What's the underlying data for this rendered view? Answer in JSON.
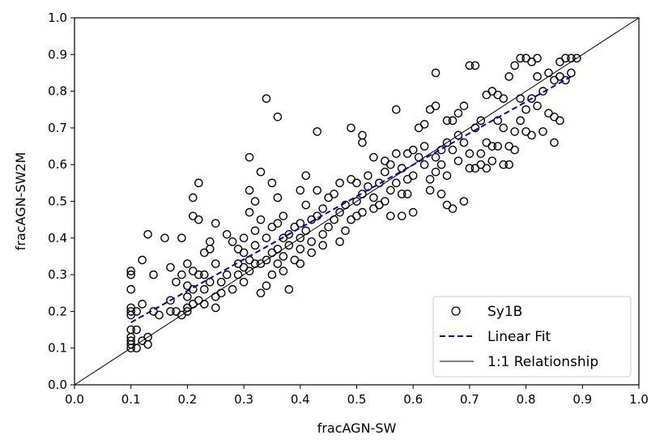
{
  "chart_data": {
    "type": "scatter",
    "xlabel": "fracAGN-SW",
    "ylabel": "fracAGN-SW2M",
    "xlim": [
      0.0,
      1.0
    ],
    "ylim": [
      0.0,
      1.0
    ],
    "xticks": [
      "0.0",
      "0.1",
      "0.2",
      "0.3",
      "0.4",
      "0.5",
      "0.6",
      "0.7",
      "0.8",
      "0.9",
      "1.0"
    ],
    "yticks": [
      "0.0",
      "0.1",
      "0.2",
      "0.3",
      "0.4",
      "0.5",
      "0.6",
      "0.7",
      "0.8",
      "0.9",
      "1.0"
    ],
    "grid": false,
    "legend_position": "lower-right",
    "colors": {
      "points": "#000000",
      "fit": "#0000cc",
      "identity": "#000000"
    },
    "series": [
      {
        "name": "Sy1B",
        "kind": "scatter",
        "points": [
          [
            0.1,
            0.1
          ],
          [
            0.1,
            0.11
          ],
          [
            0.1,
            0.12
          ],
          [
            0.1,
            0.13
          ],
          [
            0.1,
            0.15
          ],
          [
            0.1,
            0.19
          ],
          [
            0.1,
            0.2
          ],
          [
            0.1,
            0.21
          ],
          [
            0.1,
            0.26
          ],
          [
            0.1,
            0.3
          ],
          [
            0.1,
            0.31
          ],
          [
            0.11,
            0.1
          ],
          [
            0.11,
            0.15
          ],
          [
            0.11,
            0.2
          ],
          [
            0.12,
            0.12
          ],
          [
            0.12,
            0.22
          ],
          [
            0.12,
            0.34
          ],
          [
            0.13,
            0.11
          ],
          [
            0.13,
            0.13
          ],
          [
            0.13,
            0.41
          ],
          [
            0.14,
            0.2
          ],
          [
            0.14,
            0.3
          ],
          [
            0.15,
            0.19
          ],
          [
            0.16,
            0.4
          ],
          [
            0.17,
            0.2
          ],
          [
            0.17,
            0.23
          ],
          [
            0.17,
            0.32
          ],
          [
            0.18,
            0.2
          ],
          [
            0.18,
            0.28
          ],
          [
            0.19,
            0.19
          ],
          [
            0.19,
            0.3
          ],
          [
            0.19,
            0.4
          ],
          [
            0.2,
            0.2
          ],
          [
            0.2,
            0.21
          ],
          [
            0.2,
            0.24
          ],
          [
            0.2,
            0.27
          ],
          [
            0.2,
            0.33
          ],
          [
            0.21,
            0.22
          ],
          [
            0.21,
            0.26
          ],
          [
            0.21,
            0.31
          ],
          [
            0.21,
            0.46
          ],
          [
            0.21,
            0.51
          ],
          [
            0.22,
            0.23
          ],
          [
            0.22,
            0.3
          ],
          [
            0.22,
            0.45
          ],
          [
            0.22,
            0.55
          ],
          [
            0.23,
            0.22
          ],
          [
            0.23,
            0.26
          ],
          [
            0.23,
            0.3
          ],
          [
            0.23,
            0.36
          ],
          [
            0.24,
            0.28
          ],
          [
            0.24,
            0.37
          ],
          [
            0.24,
            0.39
          ],
          [
            0.25,
            0.21
          ],
          [
            0.25,
            0.24
          ],
          [
            0.25,
            0.33
          ],
          [
            0.25,
            0.44
          ],
          [
            0.26,
            0.25
          ],
          [
            0.26,
            0.28
          ],
          [
            0.27,
            0.3
          ],
          [
            0.27,
            0.41
          ],
          [
            0.28,
            0.26
          ],
          [
            0.28,
            0.39
          ],
          [
            0.29,
            0.3
          ],
          [
            0.29,
            0.33
          ],
          [
            0.29,
            0.37
          ],
          [
            0.3,
            0.28
          ],
          [
            0.3,
            0.32
          ],
          [
            0.3,
            0.36
          ],
          [
            0.3,
            0.4
          ],
          [
            0.31,
            0.31
          ],
          [
            0.31,
            0.34
          ],
          [
            0.31,
            0.47
          ],
          [
            0.31,
            0.53
          ],
          [
            0.31,
            0.62
          ],
          [
            0.32,
            0.33
          ],
          [
            0.32,
            0.38
          ],
          [
            0.32,
            0.42
          ],
          [
            0.32,
            0.5
          ],
          [
            0.33,
            0.25
          ],
          [
            0.33,
            0.33
          ],
          [
            0.33,
            0.45
          ],
          [
            0.33,
            0.58
          ],
          [
            0.34,
            0.27
          ],
          [
            0.34,
            0.34
          ],
          [
            0.34,
            0.4
          ],
          [
            0.34,
            0.78
          ],
          [
            0.35,
            0.3
          ],
          [
            0.35,
            0.36
          ],
          [
            0.35,
            0.43
          ],
          [
            0.35,
            0.55
          ],
          [
            0.36,
            0.33
          ],
          [
            0.36,
            0.37
          ],
          [
            0.36,
            0.44
          ],
          [
            0.36,
            0.51
          ],
          [
            0.36,
            0.73
          ],
          [
            0.37,
            0.31
          ],
          [
            0.37,
            0.35
          ],
          [
            0.37,
            0.4
          ],
          [
            0.37,
            0.46
          ],
          [
            0.38,
            0.26
          ],
          [
            0.38,
            0.38
          ],
          [
            0.38,
            0.41
          ],
          [
            0.39,
            0.34
          ],
          [
            0.39,
            0.43
          ],
          [
            0.4,
            0.33
          ],
          [
            0.4,
            0.37
          ],
          [
            0.4,
            0.4
          ],
          [
            0.4,
            0.44
          ],
          [
            0.4,
            0.53
          ],
          [
            0.41,
            0.42
          ],
          [
            0.41,
            0.49
          ],
          [
            0.41,
            0.57
          ],
          [
            0.42,
            0.36
          ],
          [
            0.42,
            0.39
          ],
          [
            0.42,
            0.45
          ],
          [
            0.43,
            0.46
          ],
          [
            0.43,
            0.53
          ],
          [
            0.43,
            0.69
          ],
          [
            0.44,
            0.38
          ],
          [
            0.44,
            0.41
          ],
          [
            0.44,
            0.48
          ],
          [
            0.45,
            0.43
          ],
          [
            0.45,
            0.51
          ],
          [
            0.46,
            0.45
          ],
          [
            0.46,
            0.52
          ],
          [
            0.47,
            0.39
          ],
          [
            0.47,
            0.47
          ],
          [
            0.47,
            0.55
          ],
          [
            0.48,
            0.42
          ],
          [
            0.48,
            0.49
          ],
          [
            0.49,
            0.45
          ],
          [
            0.49,
            0.56
          ],
          [
            0.49,
            0.7
          ],
          [
            0.5,
            0.46
          ],
          [
            0.5,
            0.5
          ],
          [
            0.5,
            0.55
          ],
          [
            0.51,
            0.47
          ],
          [
            0.51,
            0.52
          ],
          [
            0.51,
            0.66
          ],
          [
            0.51,
            0.68
          ],
          [
            0.52,
            0.54
          ],
          [
            0.52,
            0.57
          ],
          [
            0.53,
            0.48
          ],
          [
            0.53,
            0.51
          ],
          [
            0.53,
            0.62
          ],
          [
            0.54,
            0.49
          ],
          [
            0.54,
            0.55
          ],
          [
            0.55,
            0.5
          ],
          [
            0.55,
            0.58
          ],
          [
            0.55,
            0.61
          ],
          [
            0.56,
            0.46
          ],
          [
            0.56,
            0.53
          ],
          [
            0.56,
            0.6
          ],
          [
            0.57,
            0.55
          ],
          [
            0.57,
            0.63
          ],
          [
            0.57,
            0.75
          ],
          [
            0.58,
            0.46
          ],
          [
            0.58,
            0.52
          ],
          [
            0.58,
            0.59
          ],
          [
            0.59,
            0.52
          ],
          [
            0.59,
            0.56
          ],
          [
            0.59,
            0.63
          ],
          [
            0.6,
            0.47
          ],
          [
            0.6,
            0.57
          ],
          [
            0.6,
            0.64
          ],
          [
            0.61,
            0.62
          ],
          [
            0.61,
            0.7
          ],
          [
            0.62,
            0.6
          ],
          [
            0.62,
            0.65
          ],
          [
            0.62,
            0.71
          ],
          [
            0.63,
            0.53
          ],
          [
            0.63,
            0.56
          ],
          [
            0.63,
            0.75
          ],
          [
            0.64,
            0.58
          ],
          [
            0.64,
            0.62
          ],
          [
            0.64,
            0.76
          ],
          [
            0.64,
            0.85
          ],
          [
            0.65,
            0.52
          ],
          [
            0.65,
            0.6
          ],
          [
            0.65,
            0.64
          ],
          [
            0.66,
            0.49
          ],
          [
            0.66,
            0.57
          ],
          [
            0.66,
            0.66
          ],
          [
            0.66,
            0.72
          ],
          [
            0.67,
            0.48
          ],
          [
            0.67,
            0.64
          ],
          [
            0.67,
            0.72
          ],
          [
            0.68,
            0.61
          ],
          [
            0.68,
            0.68
          ],
          [
            0.68,
            0.74
          ],
          [
            0.69,
            0.5
          ],
          [
            0.69,
            0.66
          ],
          [
            0.69,
            0.76
          ],
          [
            0.7,
            0.59
          ],
          [
            0.7,
            0.63
          ],
          [
            0.7,
            0.87
          ],
          [
            0.71,
            0.59
          ],
          [
            0.71,
            0.7
          ],
          [
            0.71,
            0.87
          ],
          [
            0.72,
            0.6
          ],
          [
            0.72,
            0.63
          ],
          [
            0.72,
            0.72
          ],
          [
            0.73,
            0.59
          ],
          [
            0.73,
            0.66
          ],
          [
            0.73,
            0.79
          ],
          [
            0.74,
            0.61
          ],
          [
            0.74,
            0.65
          ],
          [
            0.74,
            0.8
          ],
          [
            0.75,
            0.65
          ],
          [
            0.75,
            0.72
          ],
          [
            0.75,
            0.79
          ],
          [
            0.76,
            0.6
          ],
          [
            0.76,
            0.7
          ],
          [
            0.76,
            0.78
          ],
          [
            0.77,
            0.6
          ],
          [
            0.77,
            0.65
          ],
          [
            0.77,
            0.84
          ],
          [
            0.78,
            0.64
          ],
          [
            0.78,
            0.69
          ],
          [
            0.78,
            0.87
          ],
          [
            0.79,
            0.72
          ],
          [
            0.79,
            0.78
          ],
          [
            0.79,
            0.89
          ],
          [
            0.8,
            0.69
          ],
          [
            0.8,
            0.75
          ],
          [
            0.8,
            0.89
          ],
          [
            0.81,
            0.68
          ],
          [
            0.81,
            0.78
          ],
          [
            0.81,
            0.88
          ],
          [
            0.82,
            0.76
          ],
          [
            0.82,
            0.84
          ],
          [
            0.82,
            0.89
          ],
          [
            0.83,
            0.69
          ],
          [
            0.83,
            0.8
          ],
          [
            0.84,
            0.74
          ],
          [
            0.84,
            0.85
          ],
          [
            0.85,
            0.66
          ],
          [
            0.85,
            0.73
          ],
          [
            0.85,
            0.83
          ],
          [
            0.86,
            0.72
          ],
          [
            0.86,
            0.84
          ],
          [
            0.86,
            0.88
          ],
          [
            0.87,
            0.83
          ],
          [
            0.87,
            0.89
          ],
          [
            0.88,
            0.85
          ],
          [
            0.88,
            0.89
          ],
          [
            0.89,
            0.89
          ]
        ]
      },
      {
        "name": "Linear Fit",
        "kind": "line",
        "style": "dashed",
        "points": [
          [
            0.1,
            0.17
          ],
          [
            0.88,
            0.84
          ]
        ]
      },
      {
        "name": "1:1 Relationship",
        "kind": "line",
        "style": "solid",
        "points": [
          [
            0.0,
            0.0
          ],
          [
            1.0,
            1.0
          ]
        ]
      }
    ]
  }
}
